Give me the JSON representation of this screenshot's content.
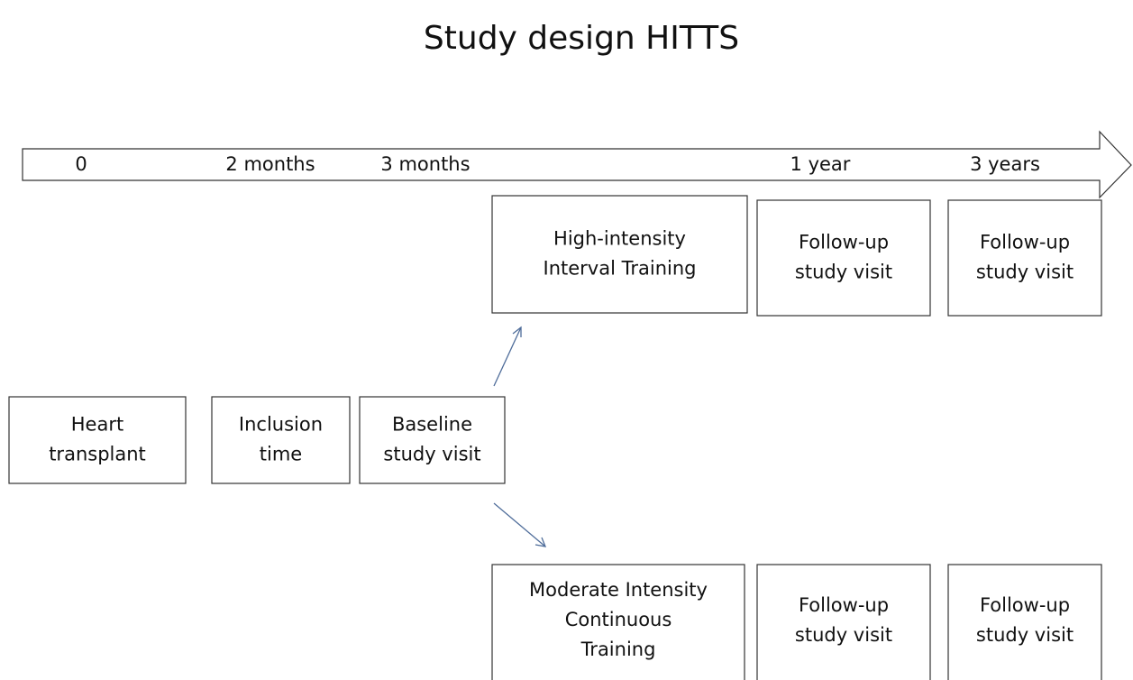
{
  "title": "Study design HITTS",
  "timeline": [
    "0",
    "2 months",
    "3 months",
    "1 year",
    "3 years"
  ],
  "nodes": [
    {
      "lines": [
        "High-intensity",
        "Interval Training"
      ]
    },
    {
      "lines": [
        "Follow-up",
        "study visit"
      ]
    },
    {
      "lines": [
        "Follow-up",
        "study visit"
      ]
    },
    {
      "lines": [
        "Heart",
        "transplant"
      ]
    },
    {
      "lines": [
        "Inclusion",
        "time"
      ]
    },
    {
      "lines": [
        "Baseline",
        "study visit"
      ]
    },
    {
      "lines": [
        "Moderate Intensity",
        "Continuous",
        "Training"
      ]
    },
    {
      "lines": [
        "Follow-up",
        "study visit"
      ]
    },
    {
      "lines": [
        "Follow-up",
        "study visit"
      ]
    }
  ]
}
